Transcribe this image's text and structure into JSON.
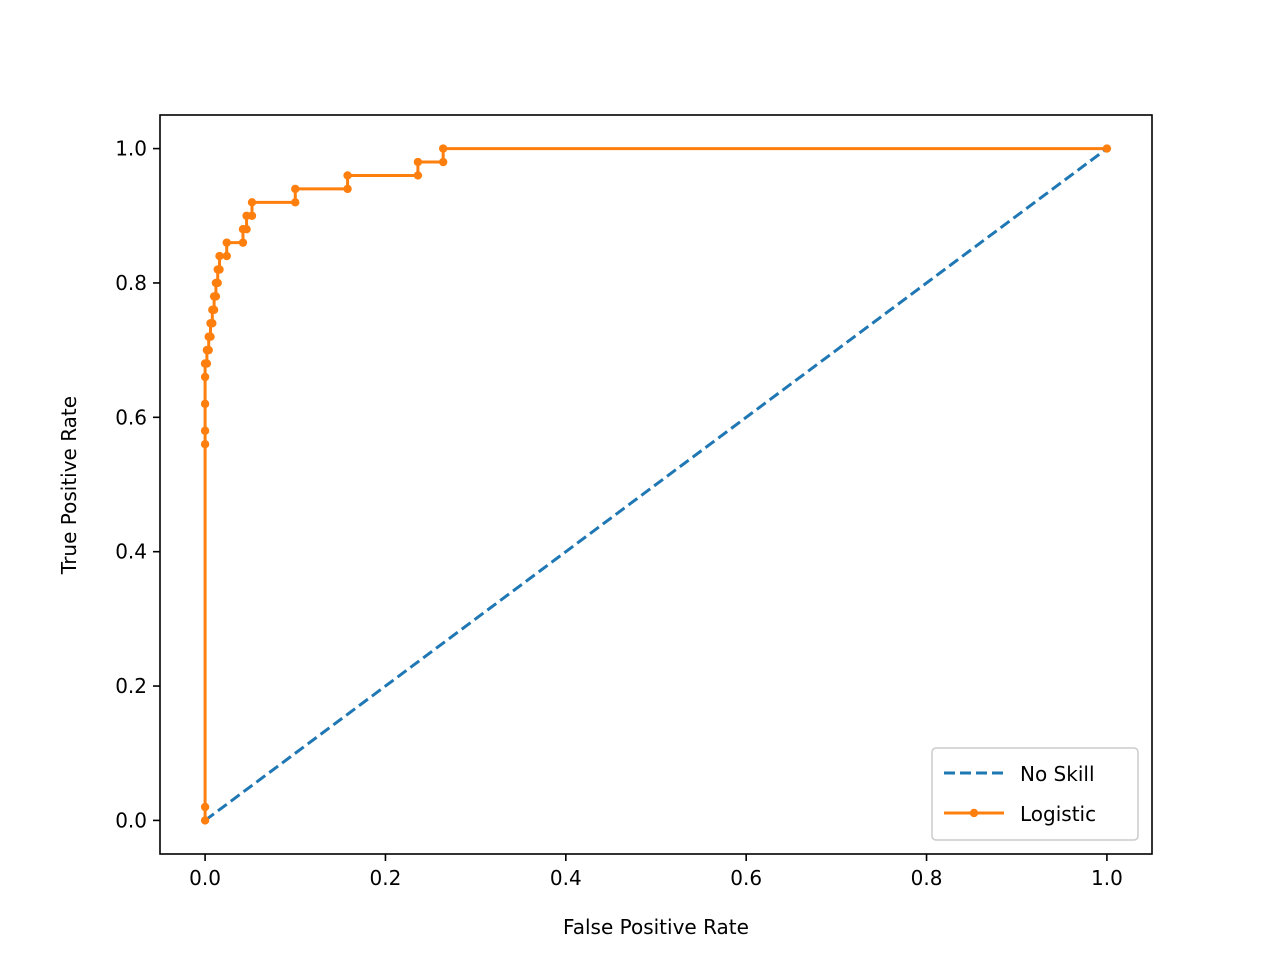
{
  "chart_data": {
    "type": "line",
    "title": "",
    "xlabel": "False Positive Rate",
    "ylabel": "True Positive Rate",
    "xlim": [
      -0.05,
      1.05
    ],
    "ylim": [
      -0.05,
      1.05
    ],
    "xticks": [
      "0.0",
      "0.2",
      "0.4",
      "0.6",
      "0.8",
      "1.0"
    ],
    "yticks": [
      "0.0",
      "0.2",
      "0.4",
      "0.6",
      "0.8",
      "1.0"
    ],
    "grid": false,
    "legend_position": "bottom-right",
    "series": [
      {
        "name": "No Skill",
        "color": "#1f77b4",
        "style": "dashed",
        "markers": false,
        "x": [
          0.0,
          1.0
        ],
        "y": [
          0.0,
          1.0
        ]
      },
      {
        "name": "Logistic",
        "color": "#ff7f0e",
        "style": "solid",
        "markers": true,
        "x": [
          0.0,
          0.0,
          0.0,
          0.0,
          0.0,
          0.0,
          0.0,
          0.0,
          0.002,
          0.002,
          0.004,
          0.004,
          0.006,
          0.006,
          0.008,
          0.008,
          0.01,
          0.01,
          0.012,
          0.012,
          0.014,
          0.014,
          0.016,
          0.016,
          0.024,
          0.024,
          0.042,
          0.042,
          0.046,
          0.046,
          0.052,
          0.052,
          0.1,
          0.1,
          0.158,
          0.158,
          0.236,
          0.236,
          0.264,
          0.264,
          1.0
        ],
        "y": [
          0.0,
          0.02,
          0.56,
          0.58,
          0.62,
          0.66,
          0.68,
          0.68,
          0.68,
          0.7,
          0.7,
          0.72,
          0.72,
          0.74,
          0.74,
          0.76,
          0.76,
          0.78,
          0.78,
          0.8,
          0.8,
          0.82,
          0.82,
          0.84,
          0.84,
          0.86,
          0.86,
          0.88,
          0.88,
          0.9,
          0.9,
          0.92,
          0.92,
          0.94,
          0.94,
          0.96,
          0.96,
          0.98,
          0.98,
          1.0,
          1.0
        ]
      }
    ]
  }
}
